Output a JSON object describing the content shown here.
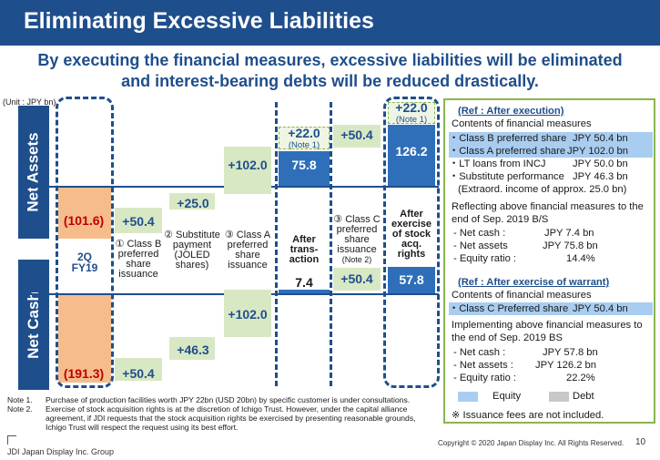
{
  "header": {
    "title": "Eliminating Excessive Liabilities",
    "subtitle_line1": "By executing the financial measures, excessive liabilities will be eliminated",
    "subtitle_line2": "and interest-bearing debts will be reduced drastically."
  },
  "chart_data": {
    "type": "bar",
    "unit_label": "(Unit : JPY bn)",
    "row_labels": [
      "Net Assets",
      "Net Cash"
    ],
    "categories": [
      "2Q FY19",
      "① Class B preferred share issuance",
      "② Substitute payment (JOLED shares)",
      "③ Class A preferred share issuance",
      "After trans-action",
      "③ Class C preferred share issuance (Note 2)",
      "After exercise of stock acq. rights"
    ],
    "category_text": {
      "fy": [
        "2Q",
        "FY19"
      ],
      "c1": [
        "① Class B",
        "preferred",
        "share",
        "issuance"
      ],
      "c2": [
        "② Substitute",
        "payment",
        "(JOLED",
        "shares)"
      ],
      "c3": [
        "③ Class A",
        "preferred",
        "share",
        "issuance"
      ],
      "after": [
        "After",
        "trans-",
        "action"
      ],
      "c5": [
        "③ Class C",
        "preferred",
        "share",
        "issuance",
        "(Note 2)"
      ],
      "exercise": [
        "After",
        "exercise",
        "of stock",
        "acq.",
        "rights"
      ]
    },
    "net_assets": {
      "start": -101.6,
      "steps": [
        50.4,
        25.0,
        102.0
      ],
      "substitute_extra": 22.0,
      "after_transaction": 75.8,
      "class_c": 50.4,
      "extra_after_exercise": 22.0,
      "after_exercise": 126.2
    },
    "net_cash": {
      "start": -191.3,
      "steps": [
        50.4,
        46.3,
        102.0
      ],
      "after_transaction": 7.4,
      "class_c": 50.4,
      "after_exercise": 57.8
    },
    "labels": {
      "na_start": "(101.6)",
      "na_s1": "+50.4",
      "na_s2": "+25.0",
      "na_s3": "+102.0",
      "na_extra": "+22.0",
      "na_note": "(Note 1)",
      "na_after": "75.8",
      "na_c": "+50.4",
      "na_extra2": "+22.0",
      "na_note2": "(Note 1)",
      "na_exercise": "126.2",
      "nc_start": "(191.3)",
      "nc_s1": "+50.4",
      "nc_s2": "+46.3",
      "nc_s3": "+102.0",
      "nc_after": "7.4",
      "nc_c": "+50.4",
      "nc_exercise": "57.8"
    },
    "colors": {
      "equity": "#a9cdf0",
      "equity_dark": "#2f6fba",
      "increase": "#d8e8c4",
      "negative": "#f6bc8c",
      "debt": "#c8c8c8",
      "navy": "#1f4e8c"
    }
  },
  "panel": {
    "ref1_title": "(Ref : After execution)",
    "contents1": "Contents of financial measures",
    "items1": [
      {
        "label": "・Class B preferred share",
        "value": "JPY 50.4 bn"
      },
      {
        "label": "・Class A preferred share",
        "value": "JPY 102.0 bn"
      },
      {
        "label": "・LT loans from INCJ",
        "value": "JPY 50.0 bn"
      },
      {
        "label": "・Substitute performance",
        "value": "JPY 46.3 bn"
      }
    ],
    "extraord": "(Extraord. income of approx. 25.0 bn)",
    "reflect1": "Reflecting above financial measures to the",
    "reflect2": "end of Sep. 2019 B/S",
    "r1": [
      {
        "label": "- Net cash :",
        "value": "JPY 7.4 bn"
      },
      {
        "label": "- Net assets",
        "value": "JPY 75.8 bn"
      },
      {
        "label": "- Equity ratio :",
        "value": "14.4%"
      }
    ],
    "ref2_title": "(Ref : After exercise of warrant)",
    "contents2": "Contents of financial measures",
    "item2": {
      "label": "・Class C Preferred share",
      "value": "JPY 50.4 bn"
    },
    "impl1": "Implementing above financial measures to",
    "impl2": "the end of Sep. 2019 BS",
    "r2": [
      {
        "label": "- Net cash :",
        "value": "JPY 57.8 bn"
      },
      {
        "label": "- Net assets :",
        "value": "JPY 126.2 bn"
      },
      {
        "label": "- Equity ratio :",
        "value": "22.2%"
      }
    ],
    "legend_equity": "Equity",
    "legend_debt": "Debt",
    "fees_note": "※ Issuance fees are not included."
  },
  "notes": {
    "n1_label": "Note 1.",
    "n1_text": "Purchase of production facilities worth JPY 22bn (USD 20bn) by specific customer is under consultations.",
    "n2_label": "Note 2.",
    "n2_text1": "Exercise of stock acquisition rights is at the discretion of Ichigo Trust. However, under the capital alliance",
    "n2_text2": "agreement, if JDI requests that the stock acquisition rights be exercised by presenting reasonable grounds,",
    "n2_text3": "Ichigo Trust will respect the request using its best effort."
  },
  "footer": {
    "company": "JDI Japan Display Inc. Group",
    "copyright": "Copyright © 2020 Japan Display Inc. All Rights Reserved.",
    "page": "10"
  }
}
